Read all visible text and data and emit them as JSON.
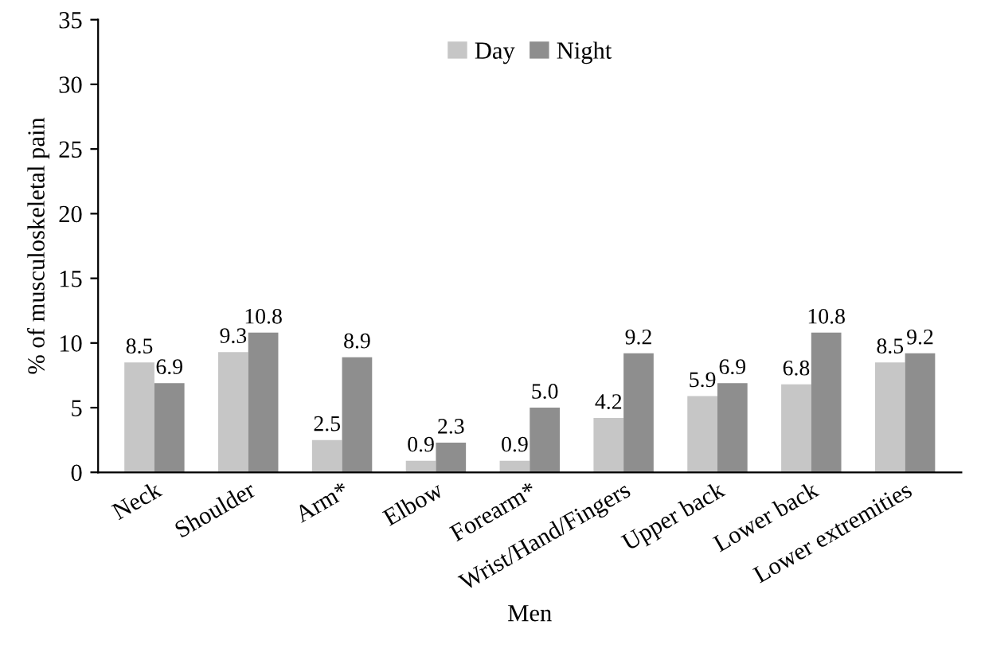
{
  "chart_data": {
    "type": "bar",
    "xlabel": "Men",
    "ylabel": "% of musculoskeletal pain",
    "categories": [
      "Neck",
      "Shoulder",
      "Arm*",
      "Elbow",
      "Forearm*",
      "Wrist/Hand/Fingers",
      "Upper back",
      "Lower back",
      "Lower extremities"
    ],
    "series": [
      {
        "name": "Day",
        "color": "#c6c6c6",
        "values": [
          8.5,
          9.3,
          2.5,
          0.9,
          0.9,
          4.2,
          5.9,
          6.8,
          8.5
        ],
        "value_labels": [
          "8.5",
          "9.3",
          "2.5",
          "0.9",
          "0.9",
          "4.2",
          "5.9",
          "6.8",
          "8.5"
        ]
      },
      {
        "name": "Night",
        "color": "#8e8e8e",
        "values": [
          6.9,
          10.8,
          8.9,
          2.3,
          5.0,
          9.2,
          6.9,
          10.8,
          9.2
        ],
        "value_labels": [
          "6.9",
          "10.8",
          "8.9",
          "2.3",
          "5.0",
          "9.2",
          "6.9",
          "10.8",
          "9.2"
        ]
      }
    ],
    "ylim": [
      0,
      35
    ],
    "yticks": [
      0,
      5,
      10,
      15,
      20,
      25,
      30,
      35
    ],
    "grid": false,
    "legend": "top"
  }
}
